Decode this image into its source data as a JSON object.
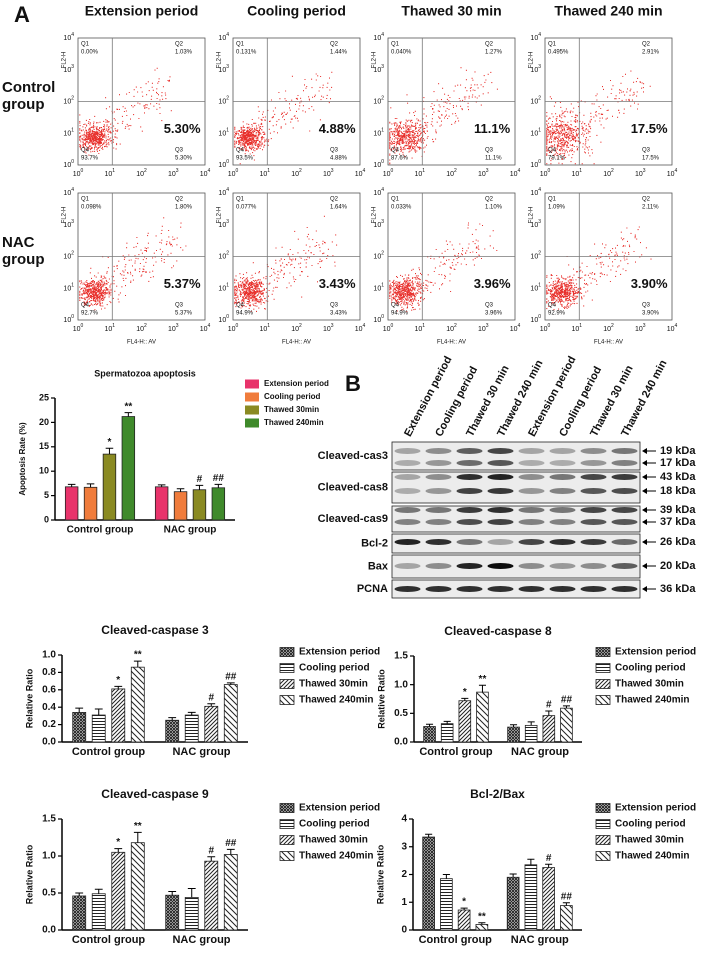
{
  "panel_labels": [
    "A",
    "B"
  ],
  "flow": {
    "column_titles": [
      "Extension period",
      "Cooling period",
      "Thawed 30 min",
      "Thawed 240 min"
    ],
    "row_labels": [
      [
        "Control",
        "group"
      ],
      [
        "NAC",
        "group"
      ]
    ],
    "x_label": "FL4-H:: AV",
    "y_label": "FL2-H",
    "tick_base": "10",
    "tick_exponents": [
      0,
      1,
      2,
      3,
      4
    ],
    "quadrant_names": [
      "Q1",
      "Q2",
      "Q3",
      "Q4"
    ],
    "plots": [
      [
        {
          "q1": "0.00%",
          "q2": "1.03%",
          "q3": "5.30%",
          "q4": "93.7%",
          "highlight": "5.30%"
        },
        {
          "q1": "0.131%",
          "q2": "1.44%",
          "q3": "4.88%",
          "q4": "93.5%",
          "highlight": "4.88%"
        },
        {
          "q1": "0.040%",
          "q2": "1.27%",
          "q3": "11.1%",
          "q4": "87.6%",
          "highlight": "11.1%"
        },
        {
          "q1": "0.495%",
          "q2": "2.91%",
          "q3": "17.5%",
          "q4": "79.1%",
          "highlight": "17.5%"
        }
      ],
      [
        {
          "q1": "0.098%",
          "q2": "1.80%",
          "q3": "5.37%",
          "q4": "92.7%",
          "highlight": "5.37%"
        },
        {
          "q1": "0.077%",
          "q2": "1.64%",
          "q3": "3.43%",
          "q4": "94.9%",
          "highlight": "3.43%"
        },
        {
          "q1": "0.033%",
          "q2": "1.10%",
          "q3": "3.96%",
          "q4": "94.9%",
          "highlight": "3.96%"
        },
        {
          "q1": "1.09%",
          "q2": "2.11%",
          "q3": "3.90%",
          "q4": "92.9%",
          "highlight": "3.90%"
        }
      ]
    ]
  },
  "blot": {
    "lane_labels": [
      "Extension period",
      "Cooling period",
      "Thawed 30 min",
      "Thawed 240 min",
      "Extension period",
      "Cooling period",
      "Thawed 30 min",
      "Thawed 240 min"
    ],
    "rows": [
      {
        "label": "Cleaved-cas3",
        "markers": [
          "19 kDa",
          "17 kDa"
        ]
      },
      {
        "label": "Cleaved-cas8",
        "markers": [
          "43 kDa",
          "18 kDa"
        ]
      },
      {
        "label": "Cleaved-cas9",
        "markers": [
          "39 kDa",
          "37 kDa"
        ]
      },
      {
        "label": "Bcl-2",
        "markers": [
          "26 kDa"
        ]
      },
      {
        "label": "Bax",
        "markers": [
          "20 kDa"
        ]
      },
      {
        "label": "PCNA",
        "markers": [
          "36 kDa"
        ]
      }
    ]
  },
  "chart_data": [
    {
      "type": "bar",
      "title": "Spermatozoa apoptosis",
      "y_label": "Apoptosis Rate (%)",
      "categories": [
        "Control group",
        "NAC group"
      ],
      "ylim": [
        0,
        25
      ],
      "yticks": [
        0,
        5,
        10,
        15,
        20,
        25
      ],
      "series": [
        {
          "name": "Extension period",
          "color": "#e8336b",
          "values": [
            6.8,
            6.8
          ],
          "errors": [
            0.5,
            0.4
          ]
        },
        {
          "name": "Cooling period",
          "color": "#f07c3c",
          "values": [
            6.7,
            5.8
          ],
          "errors": [
            0.7,
            0.6
          ]
        },
        {
          "name": "Thawed 30min",
          "color": "#8a8a22",
          "values": [
            13.5,
            6.2
          ],
          "errors": [
            1.2,
            0.9
          ],
          "markers": [
            "*",
            "#"
          ]
        },
        {
          "name": "Thawed 240min",
          "color": "#3f8a2b",
          "values": [
            21.2,
            6.6
          ],
          "errors": [
            0.8,
            0.7
          ],
          "markers": [
            "**",
            "##"
          ]
        }
      ]
    },
    {
      "type": "bar",
      "title": "Cleaved-caspase 3",
      "y_label": "Relative Ratio",
      "categories": [
        "Control group",
        "NAC group"
      ],
      "ylim": [
        0,
        1.0
      ],
      "yticks": [
        {
          "value": 0,
          "label": "0.0"
        },
        0.2,
        0.4,
        0.6,
        0.8,
        {
          "value": 1.0,
          "label": "1.0"
        }
      ],
      "series": [
        {
          "name": "Extension period",
          "pattern": "crosshatch",
          "values": [
            0.34,
            0.25
          ],
          "errors": [
            0.05,
            0.03
          ]
        },
        {
          "name": "Cooling period",
          "pattern": "horizontal",
          "values": [
            0.31,
            0.31
          ],
          "errors": [
            0.07,
            0.03
          ]
        },
        {
          "name": "Thawed 30min",
          "pattern": "diagonal",
          "values": [
            0.61,
            0.41
          ],
          "errors": [
            0.03,
            0.03
          ],
          "markers": [
            "*",
            "#"
          ]
        },
        {
          "name": "Thawed 240min",
          "pattern": "wide-diagonal",
          "values": [
            0.86,
            0.66
          ],
          "errors": [
            0.07,
            0.02
          ],
          "markers": [
            "**",
            "##"
          ]
        }
      ]
    },
    {
      "type": "bar",
      "title": "Cleaved-caspase 8",
      "y_label": "Relative Ratio",
      "categories": [
        "Control group",
        "NAC group"
      ],
      "ylim": [
        0,
        1.5
      ],
      "yticks": [
        {
          "value": 0,
          "label": "0.0"
        },
        0.5,
        {
          "value": 1.0,
          "label": "1.0"
        },
        1.5
      ],
      "series": [
        {
          "name": "Extension period",
          "pattern": "crosshatch",
          "values": [
            0.27,
            0.26
          ],
          "errors": [
            0.04,
            0.04
          ]
        },
        {
          "name": "Cooling period",
          "pattern": "horizontal",
          "values": [
            0.32,
            0.29
          ],
          "errors": [
            0.04,
            0.06
          ]
        },
        {
          "name": "Thawed 30min",
          "pattern": "diagonal",
          "values": [
            0.72,
            0.46
          ],
          "errors": [
            0.04,
            0.08
          ],
          "markers": [
            "*",
            "#"
          ]
        },
        {
          "name": "Thawed 240min",
          "pattern": "wide-diagonal",
          "values": [
            0.87,
            0.59
          ],
          "errors": [
            0.12,
            0.04
          ],
          "markers": [
            "**",
            "##"
          ]
        }
      ]
    },
    {
      "type": "bar",
      "title": "Cleaved-caspase 9",
      "y_label": "Relative Ratio",
      "categories": [
        "Control group",
        "NAC group"
      ],
      "ylim": [
        0,
        1.5
      ],
      "yticks": [
        {
          "value": 0,
          "label": "0.0"
        },
        0.5,
        {
          "value": 1.0,
          "label": "1.0"
        },
        1.5
      ],
      "series": [
        {
          "name": "Extension period",
          "pattern": "crosshatch",
          "values": [
            0.46,
            0.47
          ],
          "errors": [
            0.04,
            0.05
          ]
        },
        {
          "name": "Cooling period",
          "pattern": "horizontal",
          "values": [
            0.49,
            0.44
          ],
          "errors": [
            0.06,
            0.12
          ]
        },
        {
          "name": "Thawed 30min",
          "pattern": "diagonal",
          "values": [
            1.05,
            0.93
          ],
          "errors": [
            0.05,
            0.06
          ],
          "markers": [
            "*",
            "#"
          ]
        },
        {
          "name": "Thawed 240min",
          "pattern": "wide-diagonal",
          "values": [
            1.18,
            1.02
          ],
          "errors": [
            0.14,
            0.07
          ],
          "markers": [
            "**",
            "##"
          ]
        }
      ]
    },
    {
      "type": "bar",
      "title": "Bcl-2/Bax",
      "y_label": "Relative Ratio",
      "categories": [
        "Control group",
        "NAC group"
      ],
      "ylim": [
        0,
        4
      ],
      "yticks": [
        0,
        1,
        2,
        3,
        4
      ],
      "series": [
        {
          "name": "Extension period",
          "pattern": "crosshatch",
          "values": [
            3.35,
            1.9
          ],
          "errors": [
            0.1,
            0.12
          ]
        },
        {
          "name": "Cooling period",
          "pattern": "horizontal",
          "values": [
            1.85,
            2.35
          ],
          "errors": [
            0.15,
            0.2
          ]
        },
        {
          "name": "Thawed 30min",
          "pattern": "diagonal",
          "values": [
            0.72,
            2.25
          ],
          "errors": [
            0.07,
            0.12
          ],
          "markers": [
            "*",
            "#"
          ]
        },
        {
          "name": "Thawed 240min",
          "pattern": "wide-diagonal",
          "values": [
            0.2,
            0.88
          ],
          "errors": [
            0.06,
            0.1
          ],
          "markers": [
            "**",
            "##"
          ]
        }
      ]
    }
  ]
}
